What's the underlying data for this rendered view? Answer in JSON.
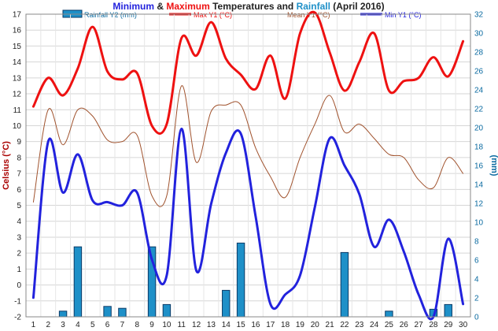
{
  "title_parts": {
    "p1": "Minimum",
    "p2": " & ",
    "p3": "Maximum",
    "p4": " Temperatures and ",
    "p5": "Rainfall",
    "p6": " (April 2016)"
  },
  "colors": {
    "min": "#2222dd",
    "max": "#ee1111",
    "mean": "#a0522d",
    "rain_fill": "#1e90c8",
    "rain_stroke": "#0a3a66",
    "left_axis": "#aa0000",
    "right_axis": "#0a6aa0",
    "title_dark": "#222222"
  },
  "chart_data": {
    "type": "bar+line",
    "title": "Minimum & Maximum Temperatures and Rainfall (April 2016)",
    "ylabel_left": "Celsius (°C)",
    "ylabel_right": "(mm)",
    "ylim_left": [
      -2,
      17
    ],
    "ylim_right": [
      0,
      32
    ],
    "grid": true,
    "legend_placement": "top",
    "x": [
      1,
      2,
      3,
      4,
      5,
      6,
      7,
      8,
      9,
      10,
      11,
      12,
      13,
      14,
      15,
      16,
      17,
      18,
      19,
      20,
      21,
      22,
      23,
      24,
      25,
      26,
      27,
      28,
      29,
      30
    ],
    "series": [
      {
        "name": "Rainfall Y2 (mm)",
        "type": "bar",
        "axis": "right",
        "values": [
          0,
          0,
          0.6,
          7.4,
          0,
          1.1,
          0.9,
          0,
          7.4,
          1.3,
          0,
          0,
          0,
          2.8,
          7.8,
          0,
          0,
          0,
          0,
          0,
          0,
          6.8,
          0,
          0,
          0.6,
          0,
          0,
          0.8,
          1.3,
          0
        ]
      },
      {
        "name": "Max Y1 (°C)",
        "type": "line",
        "axis": "left",
        "values": [
          11.2,
          13.0,
          11.9,
          13.6,
          16.2,
          13.4,
          12.9,
          13.3,
          10.0,
          10.1,
          15.5,
          14.4,
          16.5,
          14.2,
          13.2,
          12.3,
          14.4,
          11.7,
          15.8,
          17.1,
          14.6,
          12.2,
          14.0,
          15.8,
          12.2,
          12.8,
          13.0,
          14.3,
          13.1,
          15.3
        ]
      },
      {
        "name": "Mean Y1 (°C)",
        "type": "line",
        "axis": "left",
        "values": [
          5.2,
          11.0,
          8.8,
          11.0,
          10.6,
          9.1,
          9.0,
          9.4,
          5.6,
          5.6,
          12.5,
          7.7,
          10.9,
          11.3,
          11.3,
          8.6,
          6.8,
          5.5,
          8.0,
          10.1,
          11.9,
          9.6,
          10.1,
          9.2,
          8.2,
          8.0,
          6.6,
          6.1,
          8.0,
          7.0
        ]
      },
      {
        "name": "Min Y1 (°C)",
        "type": "line",
        "axis": "left",
        "values": [
          -0.8,
          9.0,
          5.8,
          8.2,
          5.3,
          5.2,
          5.0,
          5.8,
          1.6,
          0.6,
          9.8,
          0.9,
          5.1,
          8.3,
          9.5,
          4.3,
          -1.2,
          -0.6,
          0.6,
          4.9,
          9.2,
          7.5,
          5.7,
          2.4,
          4.1,
          2.1,
          -0.6,
          -2.0,
          2.9,
          -1.2
        ]
      }
    ],
    "left_ticks": [
      "-2",
      "-1",
      "0",
      "1",
      "2",
      "3",
      "4",
      "5",
      "6",
      "7",
      "8",
      "9",
      "10",
      "11",
      "12",
      "13",
      "14",
      "15",
      "16",
      "17"
    ],
    "right_ticks": [
      "0",
      "2",
      "4",
      "6",
      "8",
      "10",
      "12",
      "14",
      "16",
      "18",
      "20",
      "22",
      "24",
      "26",
      "28",
      "30",
      "32"
    ],
    "x_ticks": [
      "1",
      "2",
      "3",
      "4",
      "5",
      "6",
      "7",
      "8",
      "9",
      "10",
      "11",
      "12",
      "13",
      "14",
      "15",
      "16",
      "17",
      "18",
      "19",
      "20",
      "21",
      "22",
      "23",
      "24",
      "25",
      "26",
      "27",
      "28",
      "29",
      "30"
    ]
  }
}
